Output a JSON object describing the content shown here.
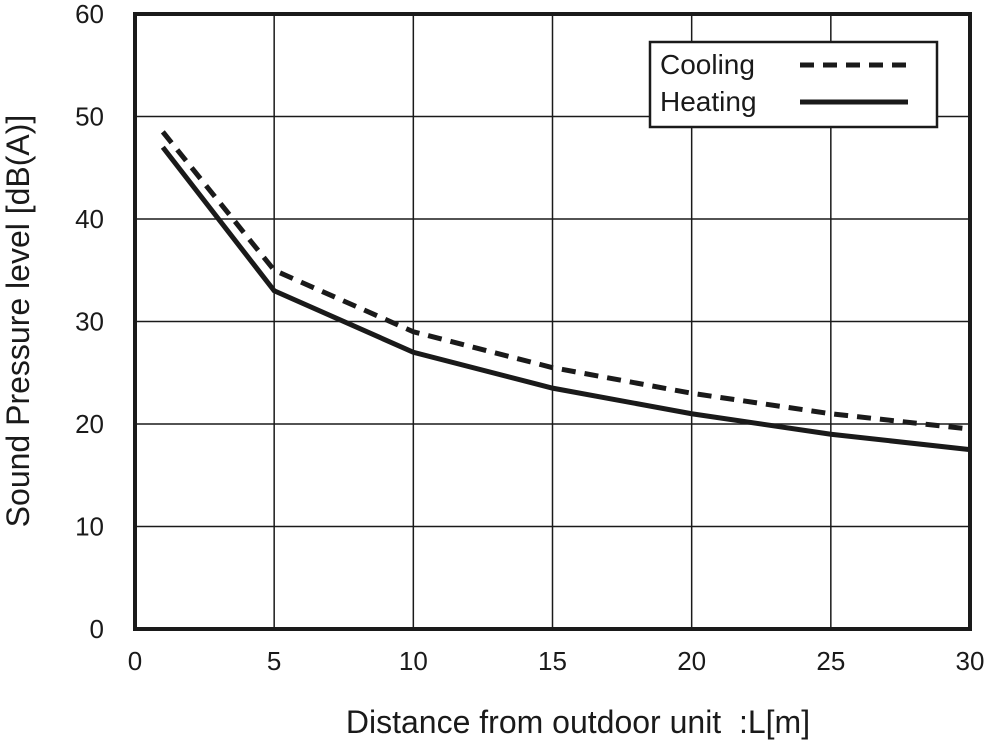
{
  "chart_data": {
    "type": "line",
    "title": "",
    "xlabel": "Distance from outdoor unit  :L[m]",
    "ylabel": "Sound Pressure level [dB(A)]",
    "xlim": [
      0,
      30
    ],
    "ylim": [
      0,
      60
    ],
    "xticks": [
      "0",
      "5",
      "10",
      "15",
      "20",
      "25",
      "30"
    ],
    "yticks": [
      "0",
      "10",
      "20",
      "30",
      "40",
      "50",
      "60"
    ],
    "grid": true,
    "legend_position": "top-right",
    "series": [
      {
        "name": "Cooling",
        "style": "dashed",
        "color": "#1a1a1a",
        "x": [
          1,
          5,
          10,
          15,
          20,
          25,
          30
        ],
        "y": [
          48.5,
          35,
          29,
          25.5,
          23,
          21,
          19.5
        ]
      },
      {
        "name": "Heating",
        "style": "solid",
        "color": "#1a1a1a",
        "x": [
          1,
          5,
          10,
          15,
          20,
          25,
          30
        ],
        "y": [
          47,
          33,
          27,
          23.5,
          21,
          19,
          17.5
        ]
      }
    ]
  }
}
